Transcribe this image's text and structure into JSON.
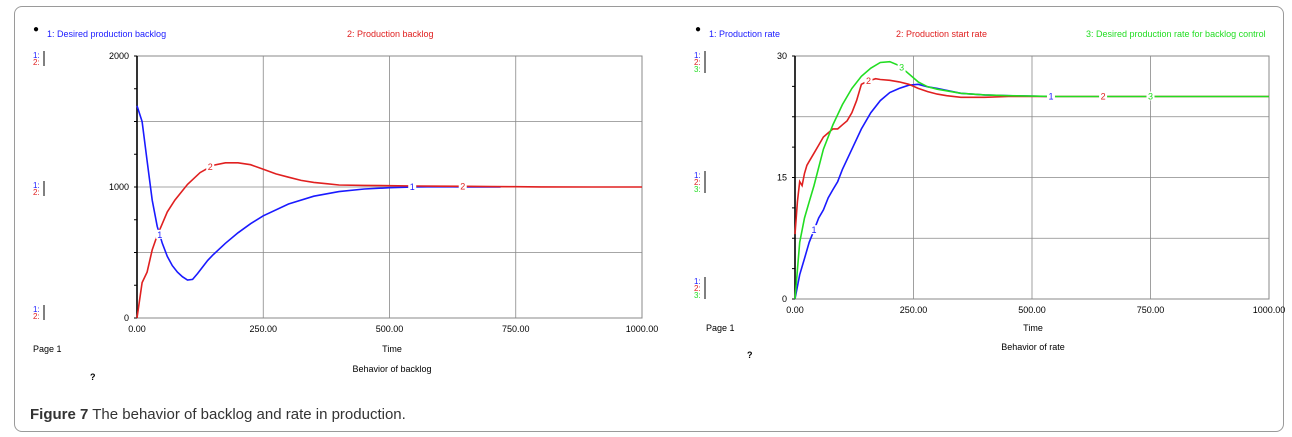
{
  "caption": {
    "label": "Figure 7",
    "text": "The behavior of backlog and rate in production."
  },
  "colors": {
    "series1": "#1a1aff",
    "series2": "#e02020",
    "series3": "#22dd22",
    "grid": "#888888",
    "axis": "#000000"
  },
  "chart_data": [
    {
      "type": "line",
      "title": "Behavior of backlog",
      "page_label": "Page 1",
      "question_mark": "?",
      "xlabel": "Time",
      "xlim": [
        0,
        1000
      ],
      "xticks": [
        "0.00",
        "250.00",
        "500.00",
        "750.00",
        "1000.00"
      ],
      "ylim": [
        0,
        2000
      ],
      "yticks": [
        {
          "value": 0,
          "label": "0"
        },
        {
          "value": 1000,
          "label": "1000"
        },
        {
          "value": 2000,
          "label": "2000"
        }
      ],
      "grid": true,
      "series": [
        {
          "name": "Desired production  backlog",
          "legend": "1: Desired production  backlog",
          "marker": "1",
          "color": "#1a1aff",
          "x": [
            0,
            10,
            20,
            30,
            40,
            50,
            60,
            70,
            80,
            90,
            100,
            110,
            120,
            130,
            140,
            150,
            175,
            200,
            225,
            250,
            300,
            350,
            400,
            450,
            500,
            550,
            600,
            650,
            720
          ],
          "y": [
            1620,
            1500,
            1200,
            900,
            700,
            570,
            470,
            400,
            350,
            315,
            290,
            295,
            340,
            390,
            440,
            480,
            570,
            650,
            720,
            780,
            870,
            930,
            965,
            985,
            995,
            1000,
            1002,
            1000,
            1000
          ],
          "marker_x": [
            45,
            545
          ]
        },
        {
          "name": "Production backlog",
          "legend": "2: Production backlog",
          "marker": "2",
          "color": "#e02020",
          "x": [
            0,
            10,
            20,
            30,
            40,
            50,
            60,
            75,
            100,
            125,
            150,
            175,
            200,
            225,
            250,
            275,
            300,
            325,
            350,
            375,
            400,
            450,
            500,
            550,
            600,
            650,
            700,
            750,
            800,
            900,
            1000
          ],
          "y": [
            0,
            270,
            350,
            520,
            630,
            720,
            810,
            900,
            1020,
            1110,
            1165,
            1185,
            1185,
            1170,
            1135,
            1100,
            1075,
            1050,
            1035,
            1025,
            1015,
            1012,
            1010,
            1008,
            1006,
            1005,
            1003,
            1002,
            1001,
            1000,
            1000
          ],
          "marker_x": [
            145,
            645
          ]
        }
      ],
      "axis_markers": [
        "1:",
        "2:"
      ]
    },
    {
      "type": "line",
      "title": "Behavior of rate",
      "page_label": "Page 1",
      "question_mark": "?",
      "xlabel": "Time",
      "xlim": [
        0,
        1000
      ],
      "xticks": [
        "0.00",
        "250.00",
        "500.00",
        "750.00",
        "1000.00"
      ],
      "ylim": [
        0,
        30
      ],
      "yticks": [
        {
          "value": 0,
          "label": "0"
        },
        {
          "value": 15,
          "label": "15"
        },
        {
          "value": 30,
          "label": "30"
        }
      ],
      "grid": true,
      "series": [
        {
          "name": "Production rate",
          "legend": "1: Production rate",
          "marker": "1",
          "color": "#1a1aff",
          "x": [
            0,
            10,
            20,
            30,
            40,
            50,
            60,
            70,
            80,
            90,
            100,
            120,
            140,
            160,
            180,
            200,
            220,
            240,
            260,
            280,
            300,
            350,
            400,
            450,
            540
          ],
          "y": [
            0,
            3,
            5,
            7,
            8.5,
            10,
            11,
            12.5,
            13.5,
            14.5,
            16,
            18.5,
            21,
            23,
            24.5,
            25.5,
            26,
            26.4,
            26.5,
            26.2,
            26,
            25.4,
            25.2,
            25.1,
            25
          ],
          "marker_x": [
            40,
            540
          ]
        },
        {
          "name": "Production start rate",
          "legend": "2: Production start rate",
          "marker": "2",
          "color": "#e02020",
          "x": [
            0,
            5,
            10,
            15,
            20,
            25,
            30,
            40,
            50,
            60,
            70,
            80,
            90,
            100,
            110,
            120,
            130,
            140,
            150,
            160,
            170,
            180,
            200,
            220,
            240,
            260,
            280,
            300,
            320,
            350,
            400,
            450,
            500,
            540,
            600,
            650,
            700,
            750,
            800,
            900,
            1000
          ],
          "y": [
            8,
            12,
            14.5,
            14,
            15.5,
            16.5,
            17,
            18,
            19,
            20,
            20.5,
            21,
            21,
            21.5,
            22,
            23,
            24.5,
            26.5,
            26.8,
            27,
            27.2,
            27.1,
            27,
            26.8,
            26.5,
            26,
            25.6,
            25.3,
            25.1,
            24.9,
            24.9,
            25,
            25,
            25,
            25,
            25,
            25,
            25,
            25,
            25,
            25
          ],
          "marker_x": [
            155,
            650
          ]
        },
        {
          "name": "Desired production rate for backlog control",
          "legend": "3: Desired production rate for backlog control",
          "marker": "3",
          "color": "#22dd22",
          "x": [
            0,
            10,
            20,
            30,
            40,
            60,
            80,
            100,
            120,
            140,
            160,
            180,
            200,
            220,
            240,
            260,
            280,
            300,
            350,
            400,
            450,
            500,
            550,
            600,
            650,
            700,
            750,
            800,
            900,
            1000
          ],
          "y": [
            0,
            7,
            10,
            12,
            14,
            18.5,
            21.5,
            24,
            26,
            27.5,
            28.5,
            29.2,
            29.3,
            28.8,
            27.8,
            26.8,
            26.2,
            25.9,
            25.4,
            25.2,
            25.1,
            25.05,
            25,
            25,
            25,
            25,
            25,
            25,
            25,
            25
          ],
          "marker_x": [
            225,
            750
          ]
        }
      ],
      "axis_markers": [
        "1:",
        "2:",
        "3:"
      ]
    }
  ]
}
